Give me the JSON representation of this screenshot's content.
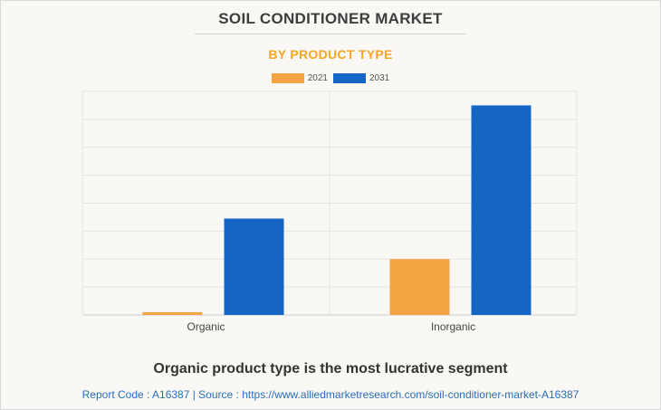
{
  "title": "SOIL CONDITIONER MARKET",
  "subtitle": "BY PRODUCT TYPE",
  "colors": {
    "s2021": "#f4a343",
    "s2031": "#1565c4",
    "title": "#3d3d3d",
    "subtitle": "#f5a623",
    "footer": "#2a6ebb"
  },
  "legend": [
    {
      "label": "2021",
      "color": "#f4a343"
    },
    {
      "label": "2031",
      "color": "#1565c4"
    }
  ],
  "chart_data": {
    "type": "bar",
    "categories": [
      "Organic",
      "Inorganic"
    ],
    "series": [
      {
        "name": "2021",
        "values": [
          0.1,
          2.0
        ]
      },
      {
        "name": "2031",
        "values": [
          3.45,
          7.5
        ]
      }
    ],
    "ylim": [
      0,
      8
    ],
    "grid": true,
    "legend_position": "top-center"
  },
  "caption": "Organic product type is the most lucrative segment",
  "footer": "Report Code : A16387  |  Source : https://www.alliedmarketresearch.com/soil-conditioner-market-A16387"
}
